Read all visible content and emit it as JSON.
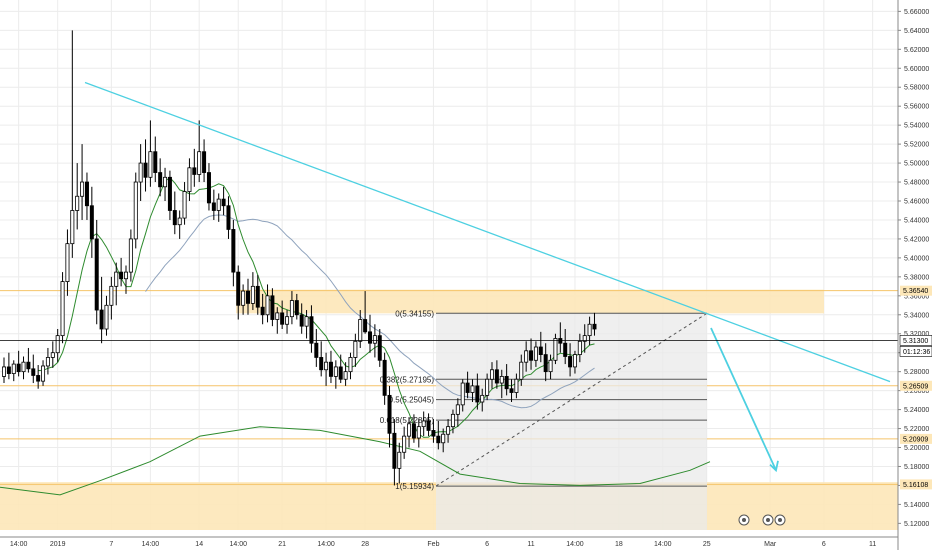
{
  "chart_data": {
    "type": "candlestick",
    "yticks": [
      "5.66000",
      "5.64000",
      "5.62000",
      "5.60000",
      "5.58000",
      "5.56000",
      "5.54000",
      "5.52000",
      "5.50000",
      "5.48000",
      "5.46000",
      "5.44000",
      "5.42000",
      "5.40000",
      "5.38000",
      "5.36000",
      "5.34000",
      "5.32000",
      "5.30000",
      "5.28000",
      "5.26000",
      "5.24000",
      "5.22000",
      "5.20000",
      "5.18000",
      "5.16000",
      "5.14000",
      "5.12000"
    ],
    "ylim": [
      5.113,
      5.672
    ],
    "xticks": [
      {
        "label": "14:00",
        "i": 3
      },
      {
        "label": "2019",
        "i": 11
      },
      {
        "label": "7",
        "i": 22
      },
      {
        "label": "14:00",
        "i": 30
      },
      {
        "label": "14",
        "i": 40
      },
      {
        "label": "14:00",
        "i": 48
      },
      {
        "label": "21",
        "i": 57
      },
      {
        "label": "14:00",
        "i": 66
      },
      {
        "label": "28",
        "i": 74
      },
      {
        "label": "Feb",
        "i": 88
      },
      {
        "label": "6",
        "i": 99
      },
      {
        "label": "11",
        "i": 108
      },
      {
        "label": "14:00",
        "i": 117
      },
      {
        "label": "18",
        "i": 126
      },
      {
        "label": "14:00",
        "i": 135
      },
      {
        "label": "25",
        "i": 144
      },
      {
        "label": "Mar",
        "i": 157
      },
      {
        "label": "6",
        "i": 168
      },
      {
        "label": "11",
        "i": 178
      }
    ],
    "candles": [
      [
        5.275,
        5.295,
        5.268,
        5.285
      ],
      [
        5.285,
        5.3,
        5.272,
        5.278
      ],
      [
        5.278,
        5.292,
        5.27,
        5.288
      ],
      [
        5.288,
        5.302,
        5.275,
        5.28
      ],
      [
        5.28,
        5.296,
        5.272,
        5.29
      ],
      [
        5.29,
        5.305,
        5.279,
        5.283
      ],
      [
        5.283,
        5.298,
        5.268,
        5.276
      ],
      [
        5.276,
        5.287,
        5.262,
        5.27
      ],
      [
        5.27,
        5.292,
        5.265,
        5.286
      ],
      [
        5.286,
        5.305,
        5.277,
        5.295
      ],
      [
        5.295,
        5.312,
        5.284,
        5.3
      ],
      [
        5.3,
        5.325,
        5.29,
        5.318
      ],
      [
        5.318,
        5.385,
        5.31,
        5.375
      ],
      [
        5.375,
        5.43,
        5.36,
        5.415
      ],
      [
        5.415,
        5.64,
        5.4,
        5.45
      ],
      [
        5.45,
        5.5,
        5.43,
        5.465
      ],
      [
        5.465,
        5.52,
        5.44,
        5.48
      ],
      [
        5.48,
        5.49,
        5.44,
        5.455
      ],
      [
        5.455,
        5.475,
        5.4,
        5.42
      ],
      [
        5.42,
        5.44,
        5.33,
        5.345
      ],
      [
        5.345,
        5.38,
        5.31,
        5.325
      ],
      [
        5.325,
        5.36,
        5.318,
        5.35
      ],
      [
        5.35,
        5.38,
        5.335,
        5.37
      ],
      [
        5.37,
        5.395,
        5.35,
        5.385
      ],
      [
        5.385,
        5.4,
        5.37,
        5.378
      ],
      [
        5.378,
        5.392,
        5.362,
        5.385
      ],
      [
        5.385,
        5.43,
        5.375,
        5.42
      ],
      [
        5.42,
        5.49,
        5.41,
        5.48
      ],
      [
        5.48,
        5.52,
        5.46,
        5.5
      ],
      [
        5.5,
        5.525,
        5.47,
        5.485
      ],
      [
        5.485,
        5.545,
        5.475,
        5.512
      ],
      [
        5.512,
        5.528,
        5.48,
        5.49
      ],
      [
        5.49,
        5.505,
        5.465,
        5.475
      ],
      [
        5.475,
        5.495,
        5.46,
        5.485
      ],
      [
        5.485,
        5.492,
        5.44,
        5.45
      ],
      [
        5.45,
        5.47,
        5.425,
        5.435
      ],
      [
        5.435,
        5.45,
        5.42,
        5.442
      ],
      [
        5.442,
        5.48,
        5.435,
        5.47
      ],
      [
        5.47,
        5.505,
        5.46,
        5.495
      ],
      [
        5.495,
        5.515,
        5.475,
        5.488
      ],
      [
        5.488,
        5.545,
        5.48,
        5.512
      ],
      [
        5.512,
        5.525,
        5.48,
        5.49
      ],
      [
        5.49,
        5.5,
        5.45,
        5.458
      ],
      [
        5.458,
        5.472,
        5.44,
        5.45
      ],
      [
        5.45,
        5.468,
        5.438,
        5.462
      ],
      [
        5.462,
        5.475,
        5.445,
        5.455
      ],
      [
        5.455,
        5.465,
        5.42,
        5.43
      ],
      [
        5.43,
        5.44,
        5.37,
        5.385
      ],
      [
        5.385,
        5.392,
        5.335,
        5.35
      ],
      [
        5.35,
        5.372,
        5.34,
        5.365
      ],
      [
        5.365,
        5.378,
        5.34,
        5.352
      ],
      [
        5.352,
        5.385,
        5.345,
        5.37
      ],
      [
        5.37,
        5.382,
        5.34,
        5.348
      ],
      [
        5.348,
        5.362,
        5.33,
        5.34
      ],
      [
        5.34,
        5.372,
        5.332,
        5.36
      ],
      [
        5.36,
        5.368,
        5.328,
        5.335
      ],
      [
        5.335,
        5.348,
        5.32,
        5.342
      ],
      [
        5.342,
        5.355,
        5.325,
        5.33
      ],
      [
        5.33,
        5.345,
        5.32,
        5.338
      ],
      [
        5.338,
        5.365,
        5.33,
        5.355
      ],
      [
        5.355,
        5.362,
        5.335,
        5.34
      ],
      [
        5.34,
        5.352,
        5.32,
        5.328
      ],
      [
        5.328,
        5.345,
        5.315,
        5.338
      ],
      [
        5.338,
        5.35,
        5.3,
        5.31
      ],
      [
        5.31,
        5.325,
        5.285,
        5.295
      ],
      [
        5.295,
        5.312,
        5.275,
        5.282
      ],
      [
        5.282,
        5.3,
        5.265,
        5.29
      ],
      [
        5.29,
        5.302,
        5.268,
        5.275
      ],
      [
        5.275,
        5.292,
        5.262,
        5.285
      ],
      [
        5.285,
        5.298,
        5.268,
        5.272
      ],
      [
        5.272,
        5.29,
        5.265,
        5.28
      ],
      [
        5.28,
        5.3,
        5.272,
        5.295
      ],
      [
        5.295,
        5.32,
        5.285,
        5.312
      ],
      [
        5.312,
        5.345,
        5.305,
        5.335
      ],
      [
        5.335,
        5.365,
        5.32,
        5.322
      ],
      [
        5.322,
        5.34,
        5.3,
        5.31
      ],
      [
        5.31,
        5.33,
        5.295,
        5.318
      ],
      [
        5.318,
        5.325,
        5.285,
        5.292
      ],
      [
        5.292,
        5.3,
        5.245,
        5.255
      ],
      [
        5.255,
        5.265,
        5.2,
        5.215
      ],
      [
        5.215,
        5.23,
        5.16,
        5.178
      ],
      [
        5.178,
        5.205,
        5.162,
        5.195
      ],
      [
        5.195,
        5.222,
        5.188,
        5.212
      ],
      [
        5.212,
        5.232,
        5.2,
        5.225
      ],
      [
        5.225,
        5.235,
        5.205,
        5.21
      ],
      [
        5.21,
        5.23,
        5.2,
        5.222
      ],
      [
        5.222,
        5.238,
        5.212,
        5.228
      ],
      [
        5.228,
        5.236,
        5.212,
        5.218
      ],
      [
        5.218,
        5.23,
        5.205,
        5.212
      ],
      [
        5.212,
        5.228,
        5.198,
        5.205
      ],
      [
        5.205,
        5.22,
        5.195,
        5.214
      ],
      [
        5.214,
        5.23,
        5.205,
        5.222
      ],
      [
        5.222,
        5.24,
        5.215,
        5.235
      ],
      [
        5.235,
        5.252,
        5.222,
        5.245
      ],
      [
        5.245,
        5.272,
        5.238,
        5.268
      ],
      [
        5.268,
        5.28,
        5.252,
        5.258
      ],
      [
        5.258,
        5.272,
        5.248,
        5.265
      ],
      [
        5.265,
        5.278,
        5.24,
        5.248
      ],
      [
        5.248,
        5.262,
        5.238,
        5.255
      ],
      [
        5.255,
        5.278,
        5.25,
        5.272
      ],
      [
        5.272,
        5.29,
        5.262,
        5.282
      ],
      [
        5.282,
        5.292,
        5.262,
        5.268
      ],
      [
        5.268,
        5.282,
        5.252,
        5.275
      ],
      [
        5.275,
        5.288,
        5.255,
        5.262
      ],
      [
        5.262,
        5.272,
        5.248,
        5.258
      ],
      [
        5.258,
        5.278,
        5.252,
        5.272
      ],
      [
        5.272,
        5.298,
        5.265,
        5.29
      ],
      [
        5.29,
        5.312,
        5.28,
        5.302
      ],
      [
        5.302,
        5.315,
        5.282,
        5.292
      ],
      [
        5.292,
        5.312,
        5.285,
        5.306
      ],
      [
        5.306,
        5.322,
        5.29,
        5.298
      ],
      [
        5.298,
        5.31,
        5.27,
        5.28
      ],
      [
        5.28,
        5.298,
        5.272,
        5.292
      ],
      [
        5.292,
        5.32,
        5.288,
        5.315
      ],
      [
        5.315,
        5.332,
        5.3,
        5.31
      ],
      [
        5.31,
        5.325,
        5.288,
        5.296
      ],
      [
        5.296,
        5.31,
        5.275,
        5.285
      ],
      [
        5.285,
        5.302,
        5.278,
        5.298
      ],
      [
        5.298,
        5.32,
        5.29,
        5.312
      ],
      [
        5.312,
        5.33,
        5.3,
        5.318
      ],
      [
        5.318,
        5.338,
        5.308,
        5.33
      ],
      [
        5.33,
        5.342,
        5.318,
        5.325
      ]
    ]
  },
  "price_axis_tags": {
    "level_1": "5.36540",
    "last_price": "5.31300",
    "countdown": "01:12:36",
    "level_2": "5.26509",
    "level_3": "5.20909",
    "level_4": "5.16108"
  },
  "fib_levels": {
    "fib_0": "0(5.34155)",
    "fib_0382": "0.382(5.27195)",
    "fib_05": "0.5(5.25045)",
    "fib_0618": "0.618(5.22895)",
    "fib_1": "1(5.15934)"
  },
  "colors": {
    "up": "#ffffff",
    "down": "#000000",
    "zone_fill": "#fde7b8",
    "trendline": "#4dd0e1",
    "ma_fast": "#2e8b2e",
    "ma_slow": "#8fa3bd",
    "ma_long": "#2e8b2e"
  }
}
